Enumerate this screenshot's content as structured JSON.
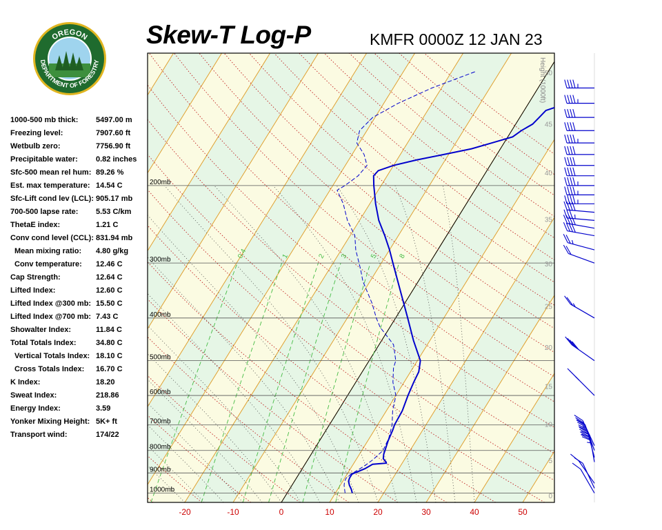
{
  "header": {
    "title": "Skew-T Log-P",
    "station_time": "KMFR 0000Z 12 JAN 23"
  },
  "logo": {
    "top_text": "OREGON",
    "ring_text": "DEPARTMENT OF FORESTRY",
    "ring_color": "#1f6b2e",
    "border_color": "#e0b520"
  },
  "stats": [
    {
      "label": "1000-500 mb thick:",
      "value": "5497.00 m",
      "indent": false
    },
    {
      "label": "Freezing level:",
      "value": "7907.60 ft",
      "indent": false
    },
    {
      "label": "Wetbulb zero:",
      "value": "7756.90 ft",
      "indent": false
    },
    {
      "label": "Precipitable water:",
      "value": "0.82 inches",
      "indent": false
    },
    {
      "label": "Sfc-500 mean rel hum:",
      "value": "89.26 %",
      "indent": false
    },
    {
      "label": "Est. max temperature:",
      "value": "14.54 C",
      "indent": false
    },
    {
      "label": "Sfc-Lift cond lev (LCL):",
      "value": "905.17 mb",
      "indent": false
    },
    {
      "label": "700-500 lapse rate:",
      "value": "5.53 C/km",
      "indent": false
    },
    {
      "label": "ThetaE index:",
      "value": "1.21 C",
      "indent": false
    },
    {
      "label": "Conv cond level (CCL):",
      "value": "831.94 mb",
      "indent": false
    },
    {
      "label": "Mean mixing ratio:",
      "value": "4.80 g/kg",
      "indent": true
    },
    {
      "label": "Conv temperature:",
      "value": "12.46 C",
      "indent": true
    },
    {
      "label": "Cap Strength:",
      "value": "12.64 C",
      "indent": false
    },
    {
      "label": "Lifted Index:",
      "value": "12.60 C",
      "indent": false
    },
    {
      "label": "Lifted Index @300 mb:",
      "value": "15.50 C",
      "indent": false
    },
    {
      "label": "Lifted Index @700 mb:",
      "value": "7.43 C",
      "indent": false
    },
    {
      "label": "Showalter Index:",
      "value": "11.84 C",
      "indent": false
    },
    {
      "label": "Total Totals Index:",
      "value": "34.80 C",
      "indent": false
    },
    {
      "label": "Vertical Totals Index:",
      "value": "18.10 C",
      "indent": true
    },
    {
      "label": "Cross Totals Index:",
      "value": "16.70 C",
      "indent": true
    },
    {
      "label": "K Index:",
      "value": "18.20",
      "indent": false
    },
    {
      "label": "Sweat Index:",
      "value": "218.86",
      "indent": false
    },
    {
      "label": "Energy Index:",
      "value": "3.59",
      "indent": false
    },
    {
      "label": "Yonker Mixing Height:",
      "value": "5K+ ft",
      "indent": false
    },
    {
      "label": "Transport wind:",
      "value": "174/22",
      "indent": false
    }
  ],
  "chart_data": {
    "type": "line",
    "title": "Skew-T Log-P",
    "xlabel": "",
    "ylabel": "",
    "xlim": [
      -27,
      57
    ],
    "x_ticks": [
      -20,
      -10,
      0,
      10,
      20,
      30,
      40,
      50
    ],
    "pressure_levels": [
      {
        "p": 200,
        "label": "200mb"
      },
      {
        "p": 300,
        "label": "300mb"
      },
      {
        "p": 400,
        "label": "400mb"
      },
      {
        "p": 500,
        "label": "500mb"
      },
      {
        "p": 600,
        "label": "600mb"
      },
      {
        "p": 700,
        "label": "700mb"
      },
      {
        "p": 800,
        "label": "800mb"
      },
      {
        "p": 900,
        "label": "900mb"
      },
      {
        "p": 1000,
        "label": "1000mb"
      }
    ],
    "height_axis": {
      "title": "Height (1000ft)",
      "ticks": [
        0,
        5,
        10,
        15,
        20,
        25,
        30,
        35,
        40,
        45,
        50
      ]
    },
    "mixing_ratio_labels": [
      "0.4",
      "1",
      "2",
      "3",
      "5",
      "8"
    ],
    "mixing_ratio_values": [
      0.4,
      1,
      2,
      3,
      5,
      8
    ],
    "colors": {
      "background_warm": "#fbfbe2",
      "background_cool": "#e6f6e6",
      "isotherm": "#e0a030",
      "dry_adiabat": "#c02020",
      "moist_adiabat": "#404040",
      "mixing_ratio": "#44bb44",
      "temperature": "#0000cc",
      "dewpoint": "#0000cc",
      "wind": "#0000cc",
      "x_tick_labels": "#cc0000"
    },
    "series": [
      {
        "name": "",
        "kind": "temperature",
        "points": [
          [
            1000,
            13.5
          ],
          [
            980,
            12.8
          ],
          [
            960,
            11.9
          ],
          [
            940,
            11.2
          ],
          [
            925,
            11.0
          ],
          [
            905,
            11.0
          ],
          [
            880,
            13.0
          ],
          [
            860,
            14.0
          ],
          [
            855,
            16.7
          ],
          [
            850,
            16.5
          ],
          [
            835,
            15.5
          ],
          [
            815,
            15.0
          ],
          [
            800,
            14.8
          ],
          [
            760,
            14.2
          ],
          [
            720,
            13.8
          ],
          [
            700,
            13.5
          ],
          [
            650,
            13.3
          ],
          [
            600,
            12.5
          ],
          [
            560,
            12.0
          ],
          [
            530,
            11.7
          ],
          [
            500,
            10.6
          ],
          [
            450,
            6.6
          ],
          [
            400,
            2.5
          ],
          [
            350,
            -2.2
          ],
          [
            300,
            -7.6
          ],
          [
            280,
            -10.0
          ],
          [
            260,
            -12.8
          ],
          [
            240,
            -16.0
          ],
          [
            220,
            -18.8
          ],
          [
            200,
            -21.5
          ],
          [
            190,
            -22.8
          ],
          [
            185,
            -22.5
          ],
          [
            180,
            -20.0
          ],
          [
            175,
            -16.0
          ],
          [
            170,
            -11.0
          ],
          [
            165,
            -6.0
          ],
          [
            160,
            -2.5
          ],
          [
            155,
            1.0
          ],
          [
            150,
            2.0
          ],
          [
            145,
            3.5
          ],
          [
            140,
            4.0
          ],
          [
            135,
            4.5
          ],
          [
            130,
            8.0
          ],
          [
            125,
            10.5
          ],
          [
            120,
            11.0
          ],
          [
            115,
            13.5
          ]
        ]
      },
      {
        "name": "",
        "kind": "dewpoint",
        "points": [
          [
            1000,
            12.0
          ],
          [
            960,
            10.8
          ],
          [
            940,
            10.4
          ],
          [
            925,
            10.3
          ],
          [
            905,
            10.8
          ],
          [
            880,
            12.0
          ],
          [
            860,
            12.8
          ],
          [
            840,
            13.5
          ],
          [
            800,
            14.4
          ],
          [
            750,
            14.0
          ],
          [
            700,
            13.0
          ],
          [
            650,
            11.3
          ],
          [
            600,
            10.0
          ],
          [
            560,
            7.7
          ],
          [
            520,
            6.0
          ],
          [
            500,
            5.5
          ],
          [
            460,
            3.0
          ],
          [
            420,
            -2.0
          ],
          [
            400,
            -4.0
          ],
          [
            370,
            -6.8
          ],
          [
            330,
            -11.5
          ],
          [
            310,
            -13.5
          ],
          [
            280,
            -17.0
          ],
          [
            260,
            -19.0
          ],
          [
            240,
            -22.5
          ],
          [
            220,
            -25.5
          ],
          [
            205,
            -28.5
          ],
          [
            200,
            -27.5
          ],
          [
            190,
            -26.0
          ],
          [
            180,
            -25.5
          ],
          [
            170,
            -27.5
          ],
          [
            160,
            -30.5
          ],
          [
            150,
            -31.5
          ],
          [
            140,
            -30.5
          ],
          [
            130,
            -27.0
          ],
          [
            120,
            -22.0
          ],
          [
            110,
            -15.0
          ]
        ]
      }
    ],
    "wind_barbs": [
      {
        "p": 1000,
        "speed_kt": 10,
        "dir_deg": 210
      },
      {
        "p": 975,
        "speed_kt": 10,
        "dir_deg": 205
      },
      {
        "p": 950,
        "speed_kt": 10,
        "dir_deg": 215
      },
      {
        "p": 850,
        "speed_kt": 35,
        "dir_deg": 190
      },
      {
        "p": 830,
        "speed_kt": 40,
        "dir_deg": 195
      },
      {
        "p": 800,
        "speed_kt": 40,
        "dir_deg": 200
      },
      {
        "p": 780,
        "speed_kt": 35,
        "dir_deg": 205
      },
      {
        "p": 600,
        "speed_kt": 25,
        "dir_deg": 225
      },
      {
        "p": 500,
        "speed_kt": 40,
        "dir_deg": 235
      },
      {
        "p": 400,
        "speed_kt": 25,
        "dir_deg": 240
      },
      {
        "p": 300,
        "speed_kt": 20,
        "dir_deg": 250
      },
      {
        "p": 280,
        "speed_kt": 25,
        "dir_deg": 255
      },
      {
        "p": 260,
        "speed_kt": 40,
        "dir_deg": 260
      },
      {
        "p": 250,
        "speed_kt": 40,
        "dir_deg": 260
      },
      {
        "p": 240,
        "speed_kt": 35,
        "dir_deg": 265
      },
      {
        "p": 230,
        "speed_kt": 40,
        "dir_deg": 265
      },
      {
        "p": 220,
        "speed_kt": 45,
        "dir_deg": 270
      },
      {
        "p": 210,
        "speed_kt": 45,
        "dir_deg": 270
      },
      {
        "p": 200,
        "speed_kt": 45,
        "dir_deg": 270
      },
      {
        "p": 190,
        "speed_kt": 40,
        "dir_deg": 270
      },
      {
        "p": 180,
        "speed_kt": 40,
        "dir_deg": 270
      },
      {
        "p": 170,
        "speed_kt": 40,
        "dir_deg": 270
      },
      {
        "p": 160,
        "speed_kt": 45,
        "dir_deg": 270
      },
      {
        "p": 150,
        "speed_kt": 40,
        "dir_deg": 270
      },
      {
        "p": 140,
        "speed_kt": 40,
        "dir_deg": 270
      },
      {
        "p": 130,
        "speed_kt": 45,
        "dir_deg": 270
      },
      {
        "p": 120,
        "speed_kt": 45,
        "dir_deg": 270
      }
    ]
  }
}
